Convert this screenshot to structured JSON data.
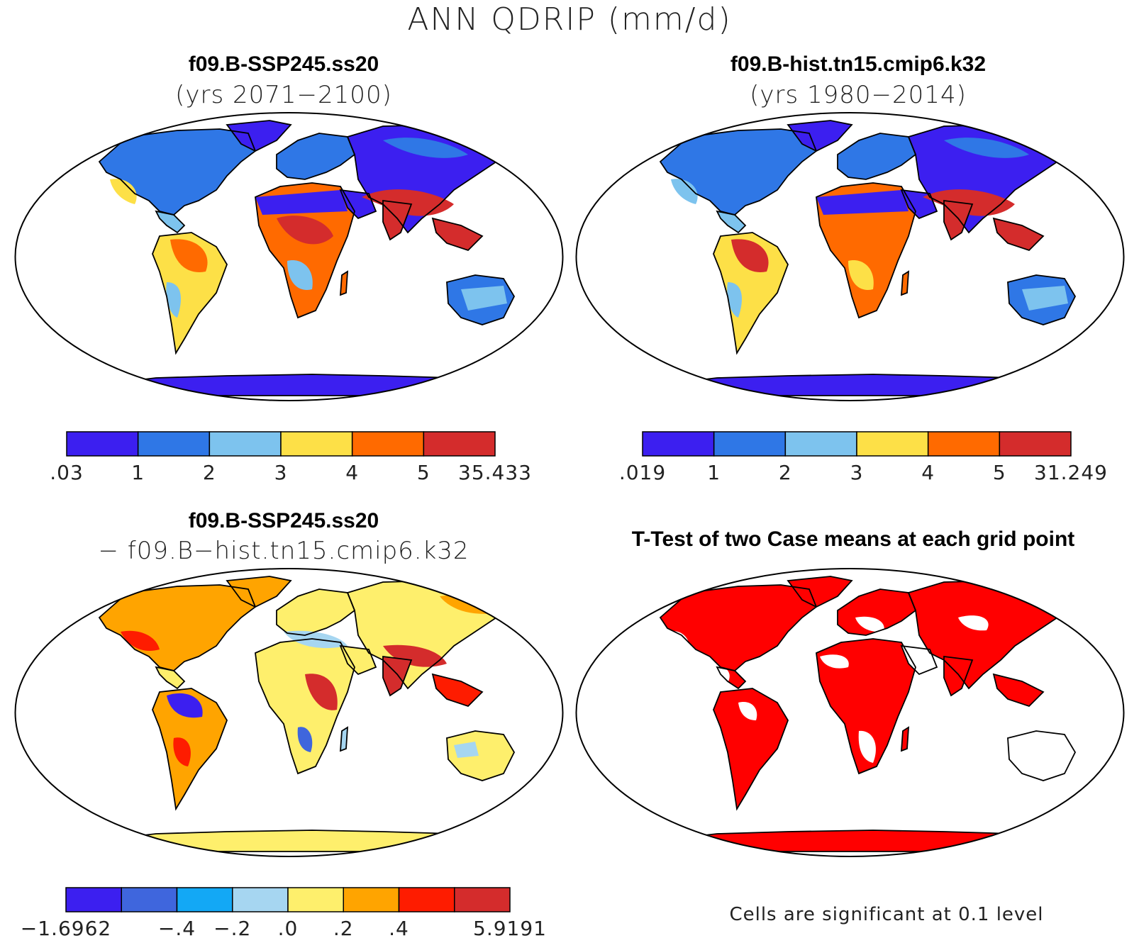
{
  "figure_title": "ANN QDRIP (mm/d)",
  "panels": [
    {
      "title": "f09.B-SSP245.ss20",
      "subtitle": "(yrs 2071−2100)"
    },
    {
      "title": "f09.B-hist.tn15.cmip6.k32",
      "subtitle": "(yrs 1980−2014)"
    },
    {
      "title": "f09.B-SSP245.ss20",
      "subtitle": "− f09.B−hist.tn15.cmip6.k32"
    },
    {
      "title": "T-Test of two Case means at each grid point",
      "subtitle": ""
    }
  ],
  "colorbars": [
    {
      "colors": [
        "#3c1ff0",
        "#2f77e6",
        "#7dc3ee",
        "#fde047",
        "#ff6a00",
        "#d42c2c"
      ],
      "labels": [
        ".03",
        "1",
        "2",
        "3",
        "4",
        "5",
        "35.433"
      ]
    },
    {
      "colors": [
        "#3c1ff0",
        "#2f77e6",
        "#7dc3ee",
        "#fde047",
        "#ff6a00",
        "#d42c2c"
      ],
      "labels": [
        ".019",
        "1",
        "2",
        "3",
        "4",
        "5",
        "31.249"
      ]
    },
    {
      "colors": [
        "#3c1ff0",
        "#3f66dd",
        "#13a8f5",
        "#a6d6f1",
        "#feef6c",
        "#ffa400",
        "#fe1c00",
        "#d42c2c"
      ],
      "labels": [
        "−1.6962",
        "−.4",
        "−.2",
        ".0",
        ".2",
        ".4",
        "5.9191"
      ]
    }
  ],
  "significance_note": "Cells are significant at 0.1 level",
  "significance_color": "#ff0000",
  "map_projection": "Robinson (global)"
}
